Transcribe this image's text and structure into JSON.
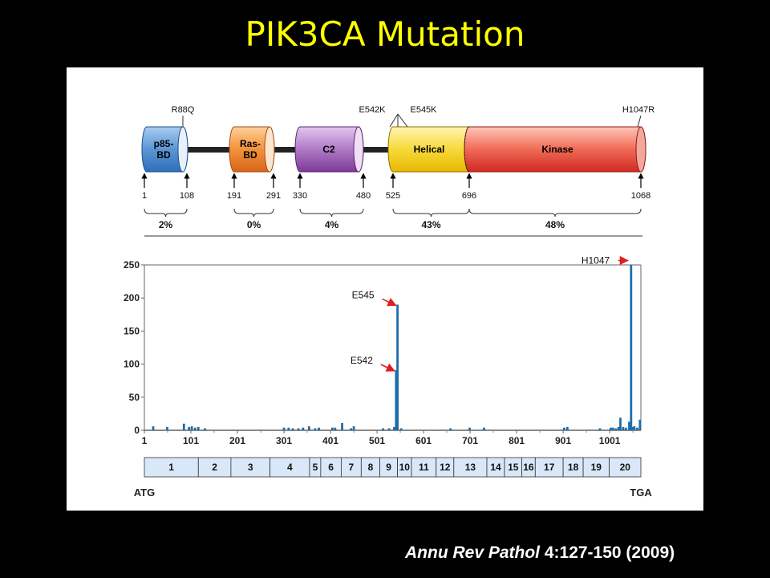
{
  "slide": {
    "title": "PIK3CA Mutation",
    "citation_journal": "Annu Rev Pathol",
    "citation_ref": " 4:127-150 (2009)"
  },
  "domain_diagram": {
    "mutation_labels": [
      "R88Q",
      "E542K",
      "E545K",
      "H1047R"
    ],
    "domains": [
      {
        "name": "p85-BD",
        "line1": "p85-",
        "line2": "BD",
        "start": 1,
        "end": 108,
        "color": "#2f6fb7",
        "pct": "2%"
      },
      {
        "name": "Ras-BD",
        "line1": "Ras-",
        "line2": "BD",
        "start": 191,
        "end": 291,
        "color": "#e8741e",
        "pct": "0%"
      },
      {
        "name": "C2",
        "line1": "C2",
        "line2": "",
        "start": 330,
        "end": 480,
        "color": "#8a3f9e",
        "pct": "4%"
      },
      {
        "name": "Helical",
        "line1": "Helical",
        "line2": "",
        "start": 525,
        "end": 696,
        "color": "#f2c200",
        "pct": "43%"
      },
      {
        "name": "Kinase",
        "line1": "Kinase",
        "line2": "",
        "start": 696,
        "end": 1068,
        "color": "#e0302a",
        "pct": "48%"
      }
    ],
    "positions": [
      "1",
      "108",
      "191",
      "291",
      "330",
      "480",
      "525",
      "696",
      "1068"
    ]
  },
  "chart_data": {
    "type": "bar",
    "title": "",
    "xlabel": "",
    "ylabel": "",
    "ylim": [
      0,
      250
    ],
    "xlim": [
      1,
      1068
    ],
    "xticks": [
      "1",
      "101",
      "201",
      "301",
      "401",
      "501",
      "601",
      "701",
      "801",
      "901",
      "1001"
    ],
    "yticks": [
      "0",
      "50",
      "100",
      "150",
      "200",
      "250"
    ],
    "bar_color": "#1f6ea8",
    "x": [
      20,
      50,
      86,
      97,
      103,
      110,
      117,
      131,
      301,
      311,
      320,
      332,
      342,
      355,
      368,
      376,
      405,
      411,
      426,
      445,
      451,
      514,
      527,
      538,
      542,
      545,
      553,
      659,
      700,
      731,
      903,
      910,
      980,
      1003,
      1008,
      1014,
      1020,
      1024,
      1030,
      1036,
      1043,
      1047,
      1050,
      1054,
      1060,
      1066
    ],
    "values": [
      6,
      5,
      10,
      5,
      6,
      4,
      5,
      3,
      4,
      4,
      3,
      3,
      4,
      6,
      3,
      4,
      4,
      4,
      11,
      3,
      6,
      3,
      3,
      5,
      91,
      190,
      3,
      3,
      4,
      4,
      4,
      5,
      3,
      4,
      4,
      3,
      5,
      19,
      5,
      4,
      13,
      250,
      5,
      6,
      4,
      16
    ],
    "annotations": [
      {
        "label": "E545",
        "x": 545,
        "y": 190
      },
      {
        "label": "E542",
        "x": 542,
        "y": 91
      },
      {
        "label": "H1047",
        "x": 1047,
        "y": 230
      }
    ]
  },
  "exons": {
    "labels": [
      "1",
      "2",
      "3",
      "4",
      "5",
      "6",
      "7",
      "8",
      "9",
      "10",
      "11",
      "12",
      "13",
      "14",
      "15",
      "16",
      "17",
      "18",
      "19",
      "20"
    ],
    "boundaries": [
      1,
      117,
      187,
      271,
      356,
      380,
      424,
      467,
      507,
      545,
      575,
      628,
      666,
      737,
      775,
      812,
      841,
      901,
      944,
      1000,
      1068
    ],
    "start_label": "ATG",
    "end_label": "TGA",
    "fill": "#d8e8f8"
  }
}
